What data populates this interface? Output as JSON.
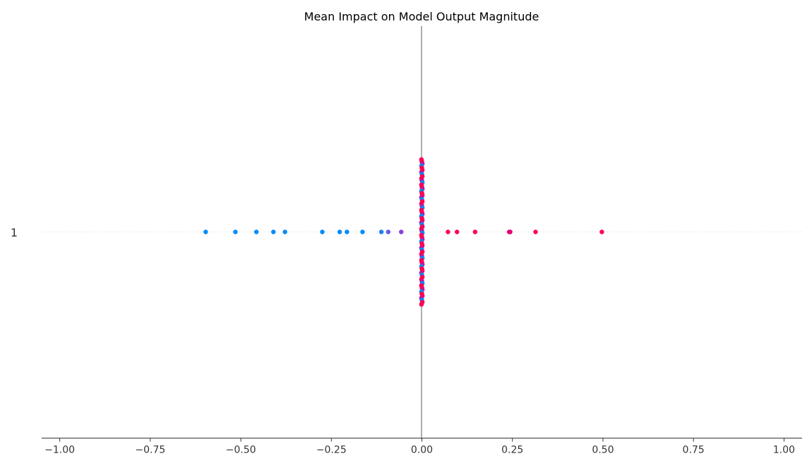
{
  "chart_data": {
    "type": "scatter",
    "title": "Mean Impact on Model Output Magnitude",
    "xlabel": "",
    "ylabel": "",
    "xlim": [
      -1.05,
      1.05
    ],
    "x_ticks": [
      -1.0,
      -0.75,
      -0.5,
      -0.25,
      0.0,
      0.25,
      0.5,
      0.75,
      1.0
    ],
    "x_tick_labels": [
      "−1.00",
      "−0.75",
      "−0.50",
      "−0.25",
      "0.00",
      "0.25",
      "0.50",
      "0.75",
      "1.00"
    ],
    "y_categories": [
      "1"
    ],
    "zero_line": true,
    "grid": false,
    "colors": {
      "low": "#008bfb",
      "mid": "#7b4fe0",
      "high": "#ff0052",
      "zero_line": "#999999",
      "axis": "#333333",
      "row_guide": "#e6e6e6"
    },
    "points": [
      {
        "x": -0.597,
        "color": "#008bfb"
      },
      {
        "x": -0.515,
        "color": "#008bfb"
      },
      {
        "x": -0.457,
        "color": "#008bfb"
      },
      {
        "x": -0.41,
        "color": "#008bfb"
      },
      {
        "x": -0.378,
        "color": "#008bfb"
      },
      {
        "x": -0.275,
        "color": "#008bfb"
      },
      {
        "x": -0.227,
        "color": "#008bfb"
      },
      {
        "x": -0.207,
        "color": "#008bfb"
      },
      {
        "x": -0.164,
        "color": "#008bfb"
      },
      {
        "x": -0.112,
        "color": "#1a7ff5"
      },
      {
        "x": -0.093,
        "color": "#6a5ce8"
      },
      {
        "x": -0.057,
        "color": "#8a3fe0"
      },
      {
        "x": 0.072,
        "color": "#ff0052"
      },
      {
        "x": 0.097,
        "color": "#ff0052"
      },
      {
        "x": 0.147,
        "color": "#ff0052"
      },
      {
        "x": 0.241,
        "color": "#ff0052"
      },
      {
        "x": 0.244,
        "color": "#e0007a"
      },
      {
        "x": 0.314,
        "color": "#ff0052"
      },
      {
        "x": 0.497,
        "color": "#ff0052"
      }
    ],
    "zero_cluster_count": 70
  }
}
